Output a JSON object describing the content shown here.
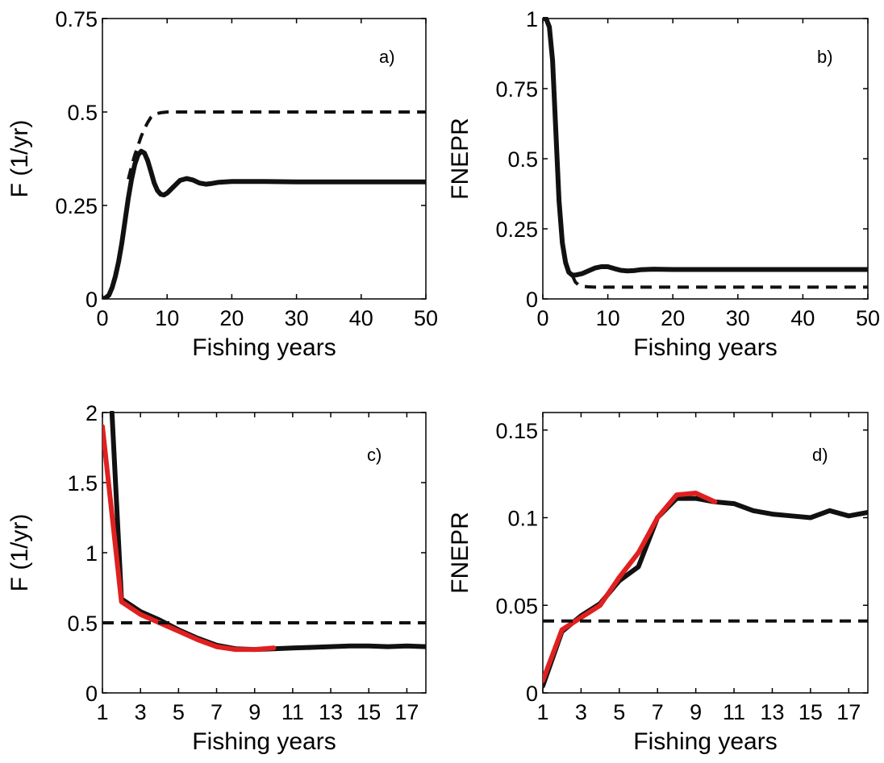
{
  "colors": {
    "main": "#111111",
    "reference": "#111111",
    "highlight": "#e02020"
  },
  "chart_data": [
    {
      "type": "line",
      "panel": "a)",
      "xlabel": "Fishing years",
      "ylabel": "F (1/yr)",
      "xlim": [
        0,
        50
      ],
      "ylim": [
        0,
        0.75
      ],
      "xticks": [
        0,
        10,
        20,
        30,
        40,
        50
      ],
      "yticks": [
        0,
        0.25,
        0.5,
        0.75
      ],
      "ytick_labels": [
        "0",
        "0.25",
        "0.5",
        "0.75"
      ],
      "legend": "none",
      "grid": false,
      "series": [
        {
          "style": "solid",
          "color": "black",
          "x": [
            0,
            0.5,
            1,
            1.5,
            2,
            2.5,
            3,
            3.5,
            4,
            4.5,
            5,
            5.5,
            6,
            6.5,
            7,
            7.5,
            8,
            8.5,
            9,
            9.5,
            10,
            11,
            12,
            13,
            14,
            15,
            16,
            17,
            18,
            20,
            25,
            30,
            40,
            50
          ],
          "y": [
            0,
            0.003,
            0.01,
            0.03,
            0.06,
            0.1,
            0.15,
            0.21,
            0.27,
            0.32,
            0.36,
            0.385,
            0.395,
            0.39,
            0.37,
            0.34,
            0.31,
            0.29,
            0.28,
            0.278,
            0.283,
            0.3,
            0.317,
            0.322,
            0.318,
            0.31,
            0.307,
            0.309,
            0.312,
            0.314,
            0.314,
            0.313,
            0.313,
            0.313
          ]
        },
        {
          "style": "dashed",
          "color": "black",
          "x": [
            4,
            4.5,
            5,
            5.5,
            6,
            6.5,
            7,
            7.5,
            8,
            9,
            10,
            15,
            20,
            30,
            40,
            50
          ],
          "y": [
            0.32,
            0.355,
            0.385,
            0.41,
            0.435,
            0.455,
            0.472,
            0.486,
            0.494,
            0.498,
            0.5,
            0.5,
            0.5,
            0.5,
            0.5,
            0.5
          ]
        }
      ]
    },
    {
      "type": "line",
      "panel": "b)",
      "xlabel": "Fishing years",
      "ylabel": "FNEPR",
      "xlim": [
        0,
        50
      ],
      "ylim": [
        0,
        1
      ],
      "xticks": [
        0,
        10,
        20,
        30,
        40,
        50
      ],
      "yticks": [
        0,
        0.25,
        0.5,
        0.75,
        1
      ],
      "ytick_labels": [
        "0",
        "0.25",
        "0.5",
        "0.75",
        "1"
      ],
      "legend": "none",
      "grid": false,
      "series": [
        {
          "style": "solid",
          "color": "black",
          "x": [
            0,
            0.5,
            1,
            1.5,
            2,
            2.5,
            3,
            3.5,
            4,
            4.5,
            5,
            6,
            7,
            8,
            9,
            10,
            11,
            12,
            13,
            14,
            15,
            17,
            20,
            30,
            40,
            50
          ],
          "y": [
            1,
            1,
            0.97,
            0.85,
            0.6,
            0.35,
            0.2,
            0.13,
            0.095,
            0.085,
            0.085,
            0.09,
            0.1,
            0.11,
            0.115,
            0.115,
            0.108,
            0.102,
            0.1,
            0.101,
            0.104,
            0.106,
            0.105,
            0.105,
            0.105,
            0.105
          ]
        },
        {
          "style": "dashed",
          "color": "black",
          "x": [
            4.5,
            5,
            5.5,
            6,
            7,
            8,
            10,
            20,
            30,
            40,
            50
          ],
          "y": [
            0.085,
            0.06,
            0.05,
            0.045,
            0.043,
            0.042,
            0.042,
            0.042,
            0.042,
            0.042,
            0.042
          ]
        }
      ]
    },
    {
      "type": "line",
      "panel": "c)",
      "xlabel": "Fishing years",
      "ylabel": "F (1/yr)",
      "xlim": [
        1,
        18
      ],
      "ylim": [
        0,
        2
      ],
      "xticks": [
        1,
        3,
        5,
        7,
        9,
        11,
        13,
        15,
        17
      ],
      "yticks": [
        0,
        0.5,
        1,
        1.5,
        2
      ],
      "ytick_labels": [
        "0",
        "0.5",
        "1",
        "1.5",
        "2"
      ],
      "legend": "none",
      "grid": false,
      "series": [
        {
          "style": "solid",
          "color": "black",
          "x": [
            1.5,
            2,
            3,
            4,
            5,
            6,
            7,
            8,
            9,
            10,
            11,
            12,
            13,
            14,
            15,
            16,
            17,
            18
          ],
          "y": [
            2.0,
            0.67,
            0.58,
            0.52,
            0.45,
            0.39,
            0.34,
            0.315,
            0.31,
            0.315,
            0.32,
            0.325,
            0.33,
            0.335,
            0.335,
            0.33,
            0.335,
            0.33
          ]
        },
        {
          "style": "solid",
          "color": "red",
          "x": [
            1,
            2,
            3,
            4,
            5,
            6,
            7,
            8,
            9,
            10
          ],
          "y": [
            1.9,
            0.65,
            0.56,
            0.5,
            0.44,
            0.38,
            0.33,
            0.31,
            0.31,
            0.32
          ]
        },
        {
          "style": "dashed",
          "color": "black",
          "x": [
            1,
            18
          ],
          "y": [
            0.5,
            0.5
          ]
        }
      ]
    },
    {
      "type": "line",
      "panel": "d)",
      "xlabel": "Fishing years",
      "ylabel": "FNEPR",
      "xlim": [
        1,
        18
      ],
      "ylim": [
        0,
        0.16
      ],
      "xticks": [
        1,
        3,
        5,
        7,
        9,
        11,
        13,
        15,
        17
      ],
      "yticks": [
        0,
        0.05,
        0.1,
        0.15
      ],
      "ytick_labels": [
        "0",
        "0.05",
        "0.1",
        "0.15"
      ],
      "legend": "none",
      "grid": false,
      "series": [
        {
          "style": "solid",
          "color": "black",
          "x": [
            1,
            2,
            3,
            4,
            5,
            6,
            7,
            8,
            9,
            10,
            11,
            12,
            13,
            14,
            15,
            16,
            17,
            18
          ],
          "y": [
            0.004,
            0.035,
            0.044,
            0.051,
            0.064,
            0.072,
            0.1,
            0.111,
            0.111,
            0.109,
            0.108,
            0.104,
            0.102,
            0.101,
            0.1,
            0.104,
            0.101,
            0.103
          ]
        },
        {
          "style": "solid",
          "color": "red",
          "x": [
            1,
            2,
            3,
            4,
            5,
            6,
            7,
            8,
            9,
            10
          ],
          "y": [
            0.007,
            0.036,
            0.043,
            0.05,
            0.066,
            0.08,
            0.1,
            0.113,
            0.114,
            0.109
          ]
        },
        {
          "style": "dashed",
          "color": "black",
          "x": [
            1,
            18
          ],
          "y": [
            0.041,
            0.041
          ]
        }
      ]
    }
  ]
}
